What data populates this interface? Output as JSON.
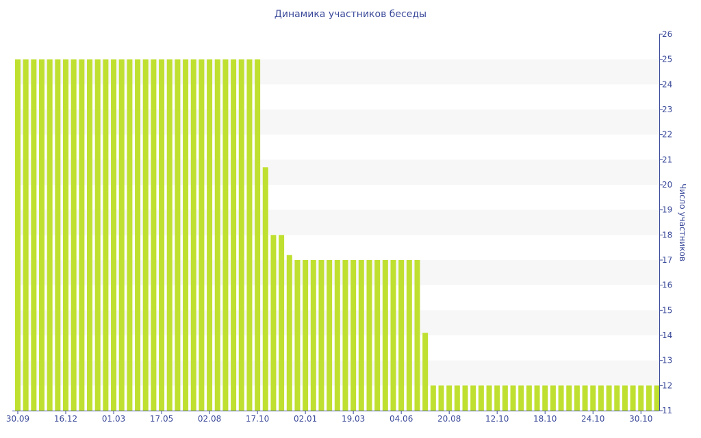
{
  "chart_data": {
    "type": "bar",
    "title": "Динамика участников беседы",
    "xlabel": "",
    "ylabel": "Число участников",
    "ylim": [
      11,
      26
    ],
    "yticks": [
      11,
      12,
      13,
      14,
      15,
      16,
      17,
      18,
      19,
      20,
      21,
      22,
      23,
      24,
      25,
      26
    ],
    "xtick_labels": [
      "30.09",
      "16.12",
      "01.03",
      "17.05",
      "02.08",
      "17.10",
      "02.01",
      "19.03",
      "04.06",
      "20.08",
      "12.10",
      "18.10",
      "24.10",
      "30.10"
    ],
    "xtick_every": 6,
    "values": [
      25,
      25,
      25,
      25,
      25,
      25,
      25,
      25,
      25,
      25,
      25,
      25,
      25,
      25,
      25,
      25,
      25,
      25,
      25,
      25,
      25,
      25,
      25,
      25,
      25,
      25,
      25,
      25,
      25,
      25,
      25,
      20.7,
      18,
      18,
      17.2,
      17,
      17,
      17,
      17,
      17,
      17,
      17,
      17,
      17,
      17,
      17,
      17,
      17,
      17,
      17,
      17,
      14.1,
      12,
      12,
      12,
      12,
      12,
      12,
      12,
      12,
      12,
      12,
      12,
      12,
      12,
      12,
      12,
      12,
      12,
      12,
      12,
      12,
      12,
      12,
      12,
      12,
      12,
      12,
      12,
      12,
      12
    ],
    "grid": "alternating horizontal bands",
    "colors": {
      "bar": "#bfe030",
      "text": "#3b4a9a",
      "band": "#f7f7f7",
      "axis": "#3b4a9a"
    }
  }
}
